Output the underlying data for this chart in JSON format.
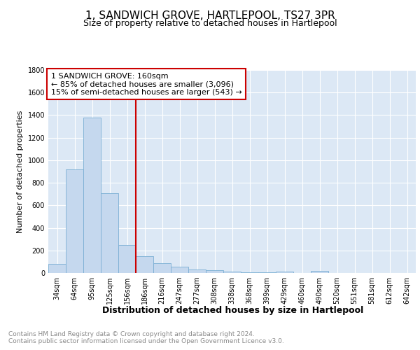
{
  "title": "1, SANDWICH GROVE, HARTLEPOOL, TS27 3PR",
  "subtitle": "Size of property relative to detached houses in Hartlepool",
  "xlabel": "Distribution of detached houses by size in Hartlepool",
  "ylabel": "Number of detached properties",
  "categories": [
    "34sqm",
    "64sqm",
    "95sqm",
    "125sqm",
    "156sqm",
    "186sqm",
    "216sqm",
    "247sqm",
    "277sqm",
    "308sqm",
    "338sqm",
    "368sqm",
    "399sqm",
    "429sqm",
    "460sqm",
    "490sqm",
    "520sqm",
    "551sqm",
    "581sqm",
    "612sqm",
    "642sqm"
  ],
  "values": [
    80,
    920,
    1380,
    710,
    250,
    150,
    90,
    55,
    30,
    25,
    15,
    8,
    5,
    15,
    2,
    18,
    0,
    0,
    0,
    0,
    0
  ],
  "bar_color": "#c5d8ee",
  "bar_edgecolor": "#7bafd4",
  "vline_color": "#cc0000",
  "annotation_text": "1 SANDWICH GROVE: 160sqm\n← 85% of detached houses are smaller (3,096)\n15% of semi-detached houses are larger (543) →",
  "annotation_box_facecolor": "#ffffff",
  "annotation_box_edgecolor": "#cc0000",
  "ylim": [
    0,
    1800
  ],
  "yticks": [
    0,
    200,
    400,
    600,
    800,
    1000,
    1200,
    1400,
    1600,
    1800
  ],
  "background_color": "#dce8f5",
  "grid_color": "#ffffff",
  "footer_text": "Contains HM Land Registry data © Crown copyright and database right 2024.\nContains public sector information licensed under the Open Government Licence v3.0.",
  "title_fontsize": 11,
  "subtitle_fontsize": 9,
  "ylabel_fontsize": 8,
  "xlabel_fontsize": 9,
  "tick_fontsize": 7,
  "annotation_fontsize": 8,
  "footer_fontsize": 6.5
}
